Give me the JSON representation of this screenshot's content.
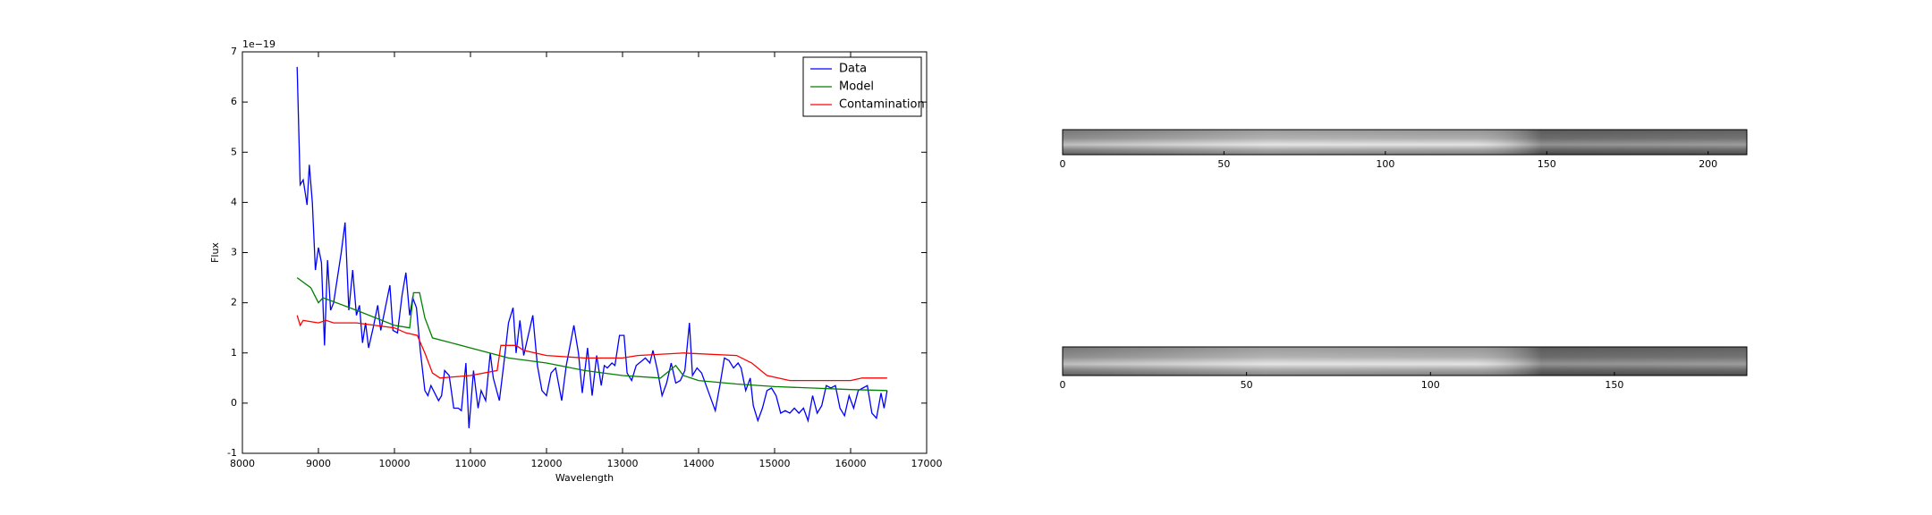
{
  "chart_data": [
    {
      "type": "line",
      "xlabel": "Wavelength",
      "ylabel": "Flux",
      "offset_text": "1e−19",
      "xlim": [
        8000,
        17000
      ],
      "xticks": [
        8000,
        9000,
        10000,
        11000,
        12000,
        13000,
        14000,
        15000,
        16000,
        17000
      ],
      "ylim": [
        -1,
        7
      ],
      "yticks": [
        -1,
        0,
        1,
        2,
        3,
        4,
        5,
        6,
        7
      ],
      "legend": "upper right",
      "series": [
        {
          "name": "Data",
          "color": "#0000ff",
          "x": [
            8720,
            8760,
            8800,
            8850,
            8880,
            8920,
            8960,
            9000,
            9040,
            9080,
            9120,
            9160,
            9200,
            9260,
            9300,
            9350,
            9400,
            9450,
            9500,
            9540,
            9580,
            9620,
            9660,
            9720,
            9780,
            9820,
            9880,
            9940,
            9980,
            10040,
            10100,
            10150,
            10200,
            10240,
            10290,
            10340,
            10400,
            10440,
            10480,
            10530,
            10580,
            10620,
            10660,
            10720,
            10780,
            10840,
            10880,
            10940,
            10980,
            11040,
            11100,
            11140,
            11200,
            11260,
            11300,
            11380,
            11440,
            11500,
            11560,
            11600,
            11650,
            11700,
            11760,
            11820,
            11880,
            11940,
            12000,
            12060,
            12120,
            12200,
            12260,
            12360,
            12420,
            12470,
            12540,
            12600,
            12660,
            12720,
            12760,
            12800,
            12860,
            12900,
            12960,
            13020,
            13060,
            13120,
            13180,
            13260,
            13300,
            13360,
            13400,
            13460,
            13520,
            13580,
            13640,
            13700,
            13760,
            13820,
            13880,
            13920,
            13980,
            14040,
            14100,
            14160,
            14220,
            14280,
            14340,
            14400,
            14460,
            14520,
            14560,
            14620,
            14680,
            14720,
            14780,
            14840,
            14900,
            14960,
            15020,
            15080,
            15140,
            15200,
            15260,
            15320,
            15380,
            15440,
            15500,
            15560,
            15620,
            15680,
            15740,
            15800,
            15860,
            15920,
            15980,
            16040,
            16100,
            16160,
            16220,
            16280,
            16340,
            16400,
            16440,
            16480
          ],
          "values": [
            6.7,
            4.35,
            4.45,
            3.95,
            4.75,
            4.0,
            2.65,
            3.1,
            2.8,
            1.15,
            2.85,
            1.85,
            2.0,
            2.6,
            3.0,
            3.6,
            1.85,
            2.65,
            1.75,
            1.95,
            1.2,
            1.6,
            1.1,
            1.5,
            1.95,
            1.45,
            1.9,
            2.35,
            1.45,
            1.4,
            2.15,
            2.6,
            1.75,
            2.1,
            1.9,
            1.05,
            0.25,
            0.15,
            0.35,
            0.2,
            0.05,
            0.15,
            0.65,
            0.55,
            -0.1,
            -0.1,
            -0.15,
            0.8,
            -0.5,
            0.65,
            -0.1,
            0.25,
            0.05,
            1.0,
            0.5,
            0.05,
            0.8,
            1.6,
            1.9,
            1.0,
            1.65,
            0.95,
            1.35,
            1.75,
            0.75,
            0.25,
            0.15,
            0.6,
            0.7,
            0.05,
            0.75,
            1.55,
            1.0,
            0.2,
            1.1,
            0.15,
            0.95,
            0.35,
            0.75,
            0.7,
            0.8,
            0.75,
            1.35,
            1.35,
            0.6,
            0.45,
            0.75,
            0.85,
            0.9,
            0.8,
            1.05,
            0.65,
            0.15,
            0.4,
            0.8,
            0.4,
            0.45,
            0.65,
            1.6,
            0.55,
            0.7,
            0.6,
            0.35,
            0.1,
            -0.15,
            0.35,
            0.9,
            0.85,
            0.7,
            0.8,
            0.7,
            0.25,
            0.5,
            -0.05,
            -0.35,
            -0.1,
            0.25,
            0.3,
            0.15,
            -0.2,
            -0.15,
            -0.2,
            -0.1,
            -0.2,
            -0.1,
            -0.35,
            0.15,
            -0.2,
            -0.05,
            0.35,
            0.3,
            0.35,
            -0.1,
            -0.25,
            0.15,
            -0.1,
            0.25,
            0.3,
            0.35,
            -0.2,
            -0.3,
            0.2,
            -0.1,
            0.25
          ]
        },
        {
          "name": "Model",
          "color": "#008000",
          "x": [
            8720,
            8900,
            9000,
            9060,
            9500,
            10000,
            10200,
            10250,
            10330,
            10400,
            10500,
            11000,
            11500,
            12000,
            12500,
            13000,
            13500,
            13700,
            13800,
            14000,
            14500,
            15000,
            15500,
            16000,
            16480
          ],
          "values": [
            2.5,
            2.3,
            2.0,
            2.1,
            1.85,
            1.55,
            1.5,
            2.2,
            2.2,
            1.7,
            1.3,
            1.1,
            0.9,
            0.8,
            0.65,
            0.55,
            0.5,
            0.75,
            0.55,
            0.45,
            0.38,
            0.33,
            0.3,
            0.27,
            0.25
          ]
        },
        {
          "name": "Contamination",
          "color": "#ff0000",
          "x": [
            8720,
            8760,
            8800,
            9000,
            9100,
            9200,
            9500,
            10000,
            10150,
            10300,
            10400,
            10500,
            10600,
            11000,
            11350,
            11400,
            11600,
            11700,
            12000,
            12500,
            13000,
            13200,
            13800,
            14500,
            14700,
            14900,
            15200,
            16000,
            16150,
            16200,
            16480
          ],
          "values": [
            1.75,
            1.55,
            1.65,
            1.6,
            1.65,
            1.6,
            1.6,
            1.5,
            1.4,
            1.35,
            1.0,
            0.6,
            0.5,
            0.55,
            0.65,
            1.15,
            1.15,
            1.05,
            0.95,
            0.9,
            0.9,
            0.95,
            1.0,
            0.95,
            0.8,
            0.55,
            0.45,
            0.45,
            0.5,
            0.5,
            0.5
          ]
        }
      ]
    },
    {
      "type": "image",
      "xlim": [
        0,
        212
      ],
      "xticks": [
        0,
        50,
        100,
        150,
        200
      ]
    },
    {
      "type": "image",
      "xlim": [
        0,
        186
      ],
      "xticks": [
        0,
        50,
        100,
        150
      ]
    }
  ]
}
